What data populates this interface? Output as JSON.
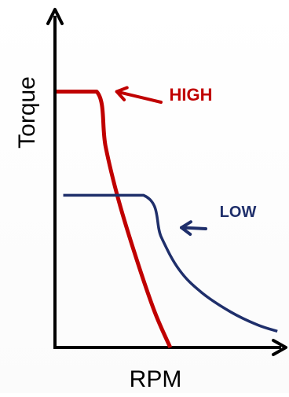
{
  "chart_data": {
    "type": "line",
    "title": "",
    "xlabel": "RPM",
    "ylabel": "Torque",
    "grid": false,
    "legend": "none",
    "x_ticks": false,
    "y_ticks": false,
    "series": [
      {
        "name": "HIGH",
        "color": "#c00000",
        "points": [
          [
            0,
            0.79
          ],
          [
            0.18,
            0.79
          ],
          [
            0.22,
            0.62
          ],
          [
            0.28,
            0.45
          ],
          [
            0.36,
            0.27
          ],
          [
            0.44,
            0.11
          ],
          [
            0.51,
            0.0
          ]
        ]
      },
      {
        "name": "LOW",
        "color": "#1f2f6b",
        "points": [
          [
            0.03,
            0.47
          ],
          [
            0.39,
            0.47
          ],
          [
            0.47,
            0.34
          ],
          [
            0.55,
            0.24
          ],
          [
            0.65,
            0.17
          ],
          [
            0.78,
            0.11
          ],
          [
            0.9,
            0.07
          ],
          [
            0.99,
            0.05
          ]
        ]
      }
    ],
    "annotations": [
      {
        "text": "HIGH",
        "color": "#c00000",
        "points_to": [
          0.27,
          0.79
        ]
      },
      {
        "text": "LOW",
        "color": "#1f2f6b",
        "points_to": [
          0.56,
          0.37
        ]
      }
    ]
  }
}
